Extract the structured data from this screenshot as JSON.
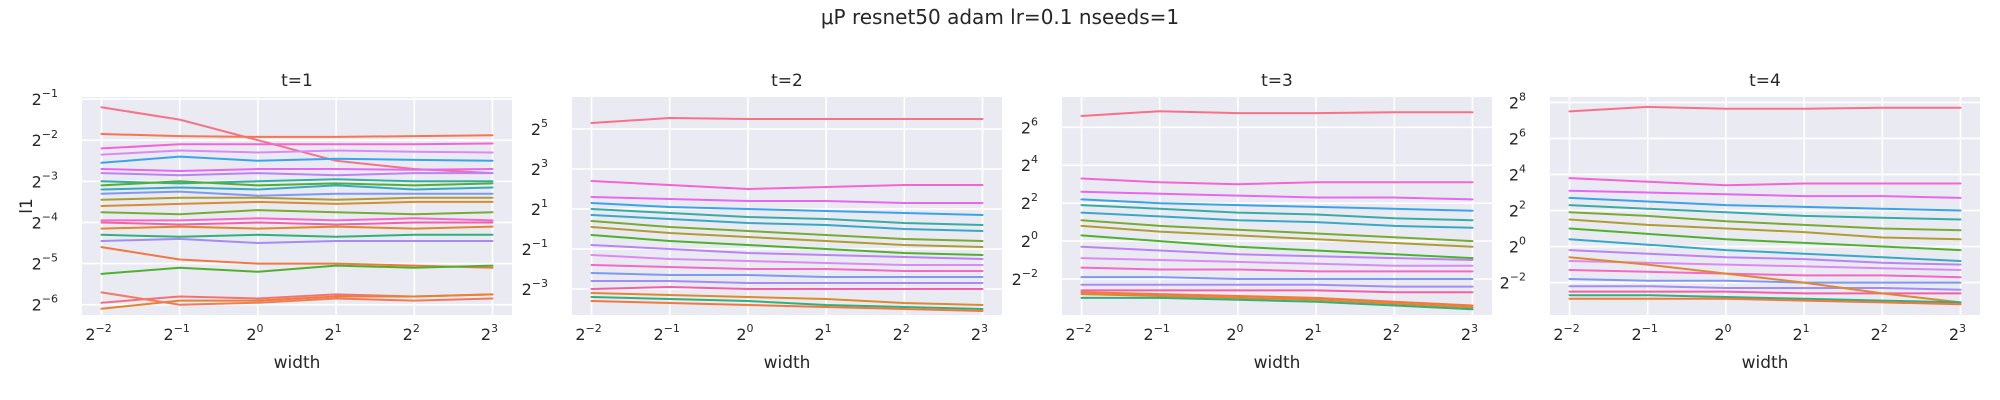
{
  "figure": {
    "suptitle": "μP resnet50 adam lr=0.1 nseeds=1"
  },
  "chart_data": [
    {
      "type": "line",
      "title": "t=1",
      "xlabel": "width",
      "ylabel": "l1",
      "x": [
        -2,
        -1,
        0,
        1,
        2,
        3
      ],
      "xscale": "log2",
      "yscale": "log2",
      "xticks": [
        -2,
        -1,
        0,
        1,
        2,
        3
      ],
      "yticks": [
        -6,
        -5,
        -4,
        -3,
        -2,
        -1
      ],
      "ylim_log2": [
        -6.25,
        -0.95
      ],
      "grid": true,
      "series": [
        {
          "color": "#f77189",
          "values": [
            -1.2,
            -1.5,
            -2.0,
            -2.5,
            -2.7,
            -2.8
          ]
        },
        {
          "color": "#f7754f",
          "values": [
            -1.85,
            -1.9,
            -1.92,
            -1.92,
            -1.9,
            -1.88
          ]
        },
        {
          "color": "#f564d4",
          "values": [
            -2.2,
            -2.1,
            -2.1,
            -2.1,
            -2.1,
            -2.08
          ]
        },
        {
          "color": "#dc89f5",
          "values": [
            -2.35,
            -2.25,
            -2.3,
            -2.25,
            -2.28,
            -2.3
          ]
        },
        {
          "color": "#3ba3ec",
          "values": [
            -2.55,
            -2.4,
            -2.5,
            -2.45,
            -2.48,
            -2.5
          ]
        },
        {
          "color": "#e866f4",
          "values": [
            -2.7,
            -2.75,
            -2.7,
            -2.7,
            -2.72,
            -2.7
          ]
        },
        {
          "color": "#bb83f4",
          "values": [
            -2.8,
            -2.85,
            -2.8,
            -2.85,
            -2.8,
            -2.8
          ]
        },
        {
          "color": "#36ada4",
          "values": [
            -3.0,
            -3.05,
            -3.0,
            -2.95,
            -3.0,
            -3.0
          ]
        },
        {
          "color": "#50b131",
          "values": [
            -3.1,
            -3.0,
            -3.1,
            -3.05,
            -3.1,
            -3.05
          ]
        },
        {
          "color": "#38a9c5",
          "values": [
            -3.2,
            -3.15,
            -3.2,
            -3.1,
            -3.2,
            -3.15
          ]
        },
        {
          "color": "#8197f4",
          "values": [
            -3.3,
            -3.25,
            -3.35,
            -3.3,
            -3.3,
            -3.3
          ]
        },
        {
          "color": "#ae9d31",
          "values": [
            -3.45,
            -3.4,
            -3.4,
            -3.45,
            -3.4,
            -3.4
          ]
        },
        {
          "color": "#d58c32",
          "values": [
            -3.6,
            -3.55,
            -3.5,
            -3.55,
            -3.5,
            -3.5
          ]
        },
        {
          "color": "#77ab31",
          "values": [
            -3.75,
            -3.8,
            -3.7,
            -3.75,
            -3.8,
            -3.75
          ]
        },
        {
          "color": "#f667c6",
          "values": [
            -3.95,
            -3.95,
            -3.9,
            -3.95,
            -3.9,
            -3.95
          ]
        },
        {
          "color": "#f45fa8",
          "values": [
            -4.0,
            -4.05,
            -4.0,
            -4.05,
            -4.0,
            -4.0
          ]
        },
        {
          "color": "#e0882f",
          "values": [
            -4.15,
            -4.1,
            -4.15,
            -4.1,
            -4.15,
            -4.1
          ]
        },
        {
          "color": "#33b07a",
          "values": [
            -4.3,
            -4.35,
            -4.3,
            -4.35,
            -4.3,
            -4.3
          ]
        },
        {
          "color": "#a48cf4",
          "values": [
            -4.45,
            -4.4,
            -4.5,
            -4.45,
            -4.45,
            -4.45
          ]
        },
        {
          "color": "#f27840",
          "values": [
            -4.6,
            -4.9,
            -5.0,
            -5.0,
            -5.05,
            -5.1
          ]
        },
        {
          "color": "#4fb030",
          "values": [
            -5.25,
            -5.1,
            -5.2,
            -5.05,
            -5.1,
            -5.05
          ]
        },
        {
          "color": "#f5707e",
          "values": [
            -5.95,
            -5.8,
            -5.85,
            -5.75,
            -5.8,
            -5.75
          ]
        },
        {
          "color": "#e8832d",
          "values": [
            -6.1,
            -5.9,
            -5.9,
            -5.8,
            -5.8,
            -5.75
          ]
        },
        {
          "color": "#f37a5f",
          "values": [
            -5.7,
            -6.0,
            -5.95,
            -5.85,
            -5.9,
            -5.85
          ]
        }
      ]
    },
    {
      "type": "line",
      "title": "t=2",
      "xlabel": "width",
      "ylabel": "",
      "x": [
        -2,
        -1,
        0,
        1,
        2,
        3
      ],
      "xscale": "log2",
      "yscale": "log2",
      "xticks": [
        -2,
        -1,
        0,
        1,
        2,
        3
      ],
      "yticks": [
        -3,
        -1,
        1,
        3,
        5
      ],
      "ylim_log2": [
        -4.3,
        6.6
      ],
      "grid": true,
      "series": [
        {
          "color": "#f77189",
          "values": [
            5.3,
            5.55,
            5.5,
            5.5,
            5.5,
            5.5
          ]
        },
        {
          "color": "#f564d4",
          "values": [
            2.4,
            2.2,
            2.0,
            2.1,
            2.2,
            2.2
          ]
        },
        {
          "color": "#e866f4",
          "values": [
            1.6,
            1.5,
            1.4,
            1.4,
            1.3,
            1.3
          ]
        },
        {
          "color": "#3ba3ec",
          "values": [
            1.3,
            1.1,
            1.0,
            0.9,
            0.8,
            0.7
          ]
        },
        {
          "color": "#36ada4",
          "values": [
            1.0,
            0.8,
            0.6,
            0.5,
            0.3,
            0.2
          ]
        },
        {
          "color": "#38a9c5",
          "values": [
            0.7,
            0.5,
            0.3,
            0.2,
            0.0,
            -0.1
          ]
        },
        {
          "color": "#77ab31",
          "values": [
            0.4,
            0.1,
            -0.1,
            -0.3,
            -0.5,
            -0.6
          ]
        },
        {
          "color": "#ae9d31",
          "values": [
            0.1,
            -0.2,
            -0.4,
            -0.6,
            -0.8,
            -0.9
          ]
        },
        {
          "color": "#50b131",
          "values": [
            -0.3,
            -0.6,
            -0.8,
            -1.0,
            -1.2,
            -1.3
          ]
        },
        {
          "color": "#bb83f4",
          "values": [
            -0.8,
            -1.0,
            -1.2,
            -1.3,
            -1.4,
            -1.5
          ]
        },
        {
          "color": "#dc89f5",
          "values": [
            -1.3,
            -1.5,
            -1.6,
            -1.7,
            -1.8,
            -1.8
          ]
        },
        {
          "color": "#f667c6",
          "values": [
            -1.8,
            -1.9,
            -2.0,
            -2.0,
            -2.1,
            -2.1
          ]
        },
        {
          "color": "#8197f4",
          "values": [
            -2.2,
            -2.3,
            -2.3,
            -2.4,
            -2.4,
            -2.4
          ]
        },
        {
          "color": "#a48cf4",
          "values": [
            -2.6,
            -2.6,
            -2.7,
            -2.7,
            -2.7,
            -2.7
          ]
        },
        {
          "color": "#f45fa8",
          "values": [
            -3.0,
            -2.9,
            -3.0,
            -3.0,
            -3.0,
            -3.0
          ]
        },
        {
          "color": "#e0882f",
          "values": [
            -3.2,
            -3.3,
            -3.4,
            -3.5,
            -3.7,
            -3.8
          ]
        },
        {
          "color": "#33b07a",
          "values": [
            -3.4,
            -3.5,
            -3.6,
            -3.8,
            -3.9,
            -4.0
          ]
        },
        {
          "color": "#f27840",
          "values": [
            -3.6,
            -3.7,
            -3.8,
            -3.9,
            -4.0,
            -4.1
          ]
        }
      ]
    },
    {
      "type": "line",
      "title": "t=3",
      "xlabel": "width",
      "ylabel": "",
      "x": [
        -2,
        -1,
        0,
        1,
        2,
        3
      ],
      "xscale": "log2",
      "yscale": "log2",
      "xticks": [
        -2,
        -1,
        0,
        1,
        2,
        3
      ],
      "yticks": [
        -2,
        0,
        2,
        4,
        6
      ],
      "ylim_log2": [
        -3.9,
        7.6
      ],
      "grid": true,
      "series": [
        {
          "color": "#f77189",
          "values": [
            6.6,
            6.85,
            6.75,
            6.75,
            6.8,
            6.8
          ]
        },
        {
          "color": "#f564d4",
          "values": [
            3.3,
            3.1,
            3.0,
            3.1,
            3.1,
            3.1
          ]
        },
        {
          "color": "#e866f4",
          "values": [
            2.6,
            2.5,
            2.4,
            2.3,
            2.3,
            2.2
          ]
        },
        {
          "color": "#3ba3ec",
          "values": [
            2.2,
            2.0,
            1.9,
            1.8,
            1.7,
            1.6
          ]
        },
        {
          "color": "#36ada4",
          "values": [
            1.9,
            1.7,
            1.5,
            1.4,
            1.2,
            1.1
          ]
        },
        {
          "color": "#38a9c5",
          "values": [
            1.5,
            1.3,
            1.1,
            1.0,
            0.8,
            0.7
          ]
        },
        {
          "color": "#77ab31",
          "values": [
            1.1,
            0.8,
            0.6,
            0.4,
            0.2,
            0.0
          ]
        },
        {
          "color": "#ae9d31",
          "values": [
            0.8,
            0.5,
            0.3,
            0.1,
            -0.1,
            -0.3
          ]
        },
        {
          "color": "#50b131",
          "values": [
            0.3,
            0.0,
            -0.3,
            -0.5,
            -0.7,
            -0.9
          ]
        },
        {
          "color": "#bb83f4",
          "values": [
            -0.3,
            -0.5,
            -0.7,
            -0.8,
            -0.9,
            -1.0
          ]
        },
        {
          "color": "#dc89f5",
          "values": [
            -0.9,
            -1.0,
            -1.1,
            -1.2,
            -1.3,
            -1.3
          ]
        },
        {
          "color": "#f667c6",
          "values": [
            -1.4,
            -1.5,
            -1.5,
            -1.6,
            -1.6,
            -1.6
          ]
        },
        {
          "color": "#8197f4",
          "values": [
            -1.9,
            -1.9,
            -2.0,
            -2.0,
            -2.0,
            -2.0
          ]
        },
        {
          "color": "#a48cf4",
          "values": [
            -2.3,
            -2.3,
            -2.3,
            -2.3,
            -2.4,
            -2.4
          ]
        },
        {
          "color": "#f45fa8",
          "values": [
            -2.6,
            -2.6,
            -2.6,
            -2.6,
            -2.7,
            -2.7
          ]
        },
        {
          "color": "#e0882f",
          "values": [
            -2.8,
            -2.9,
            -3.0,
            -3.1,
            -3.3,
            -3.5
          ]
        },
        {
          "color": "#33b07a",
          "values": [
            -3.0,
            -3.0,
            -3.1,
            -3.2,
            -3.4,
            -3.6
          ]
        },
        {
          "color": "#f27840",
          "values": [
            -2.7,
            -2.8,
            -2.9,
            -3.0,
            -3.2,
            -3.4
          ]
        }
      ]
    },
    {
      "type": "line",
      "title": "t=4",
      "xlabel": "width",
      "ylabel": "",
      "x": [
        -2,
        -1,
        0,
        1,
        2,
        3
      ],
      "xscale": "log2",
      "yscale": "log2",
      "xticks": [
        -2,
        -1,
        0,
        1,
        2,
        3
      ],
      "yticks": [
        -2,
        0,
        2,
        4,
        6,
        8
      ],
      "ylim_log2": [
        -3.8,
        8.3
      ],
      "grid": true,
      "series": [
        {
          "color": "#f77189",
          "values": [
            7.5,
            7.75,
            7.65,
            7.65,
            7.7,
            7.7
          ]
        },
        {
          "color": "#f564d4",
          "values": [
            3.8,
            3.6,
            3.4,
            3.5,
            3.5,
            3.5
          ]
        },
        {
          "color": "#e866f4",
          "values": [
            3.1,
            3.0,
            2.9,
            2.8,
            2.8,
            2.7
          ]
        },
        {
          "color": "#3ba3ec",
          "values": [
            2.7,
            2.5,
            2.3,
            2.2,
            2.1,
            2.0
          ]
        },
        {
          "color": "#36ada4",
          "values": [
            2.3,
            2.1,
            1.9,
            1.7,
            1.6,
            1.5
          ]
        },
        {
          "color": "#77ab31",
          "values": [
            1.9,
            1.7,
            1.4,
            1.2,
            1.0,
            0.9
          ]
        },
        {
          "color": "#ae9d31",
          "values": [
            1.5,
            1.2,
            1.0,
            0.8,
            0.5,
            0.4
          ]
        },
        {
          "color": "#50b131",
          "values": [
            1.0,
            0.7,
            0.4,
            0.2,
            0.0,
            -0.2
          ]
        },
        {
          "color": "#38a9c5",
          "values": [
            0.4,
            0.1,
            -0.2,
            -0.4,
            -0.6,
            -0.8
          ]
        },
        {
          "color": "#bb83f4",
          "values": [
            -0.2,
            -0.4,
            -0.6,
            -0.7,
            -0.9,
            -1.0
          ]
        },
        {
          "color": "#dc89f5",
          "values": [
            -0.8,
            -0.9,
            -1.0,
            -1.1,
            -1.2,
            -1.3
          ]
        },
        {
          "color": "#f667c6",
          "values": [
            -1.3,
            -1.4,
            -1.5,
            -1.6,
            -1.6,
            -1.7
          ]
        },
        {
          "color": "#8197f4",
          "values": [
            -1.8,
            -1.9,
            -1.9,
            -2.0,
            -2.0,
            -2.0
          ]
        },
        {
          "color": "#a48cf4",
          "values": [
            -2.2,
            -2.2,
            -2.3,
            -2.3,
            -2.3,
            -2.4
          ]
        },
        {
          "color": "#f45fa8",
          "values": [
            -2.5,
            -2.5,
            -2.5,
            -2.6,
            -2.6,
            -2.6
          ]
        },
        {
          "color": "#e0882f",
          "values": [
            -0.6,
            -1.0,
            -1.5,
            -2.0,
            -2.6,
            -3.1
          ]
        },
        {
          "color": "#33b07a",
          "values": [
            -2.7,
            -2.7,
            -2.8,
            -2.9,
            -3.0,
            -3.1
          ]
        },
        {
          "color": "#f27840",
          "values": [
            -2.9,
            -2.9,
            -2.9,
            -3.0,
            -3.1,
            -3.2
          ]
        }
      ]
    }
  ]
}
